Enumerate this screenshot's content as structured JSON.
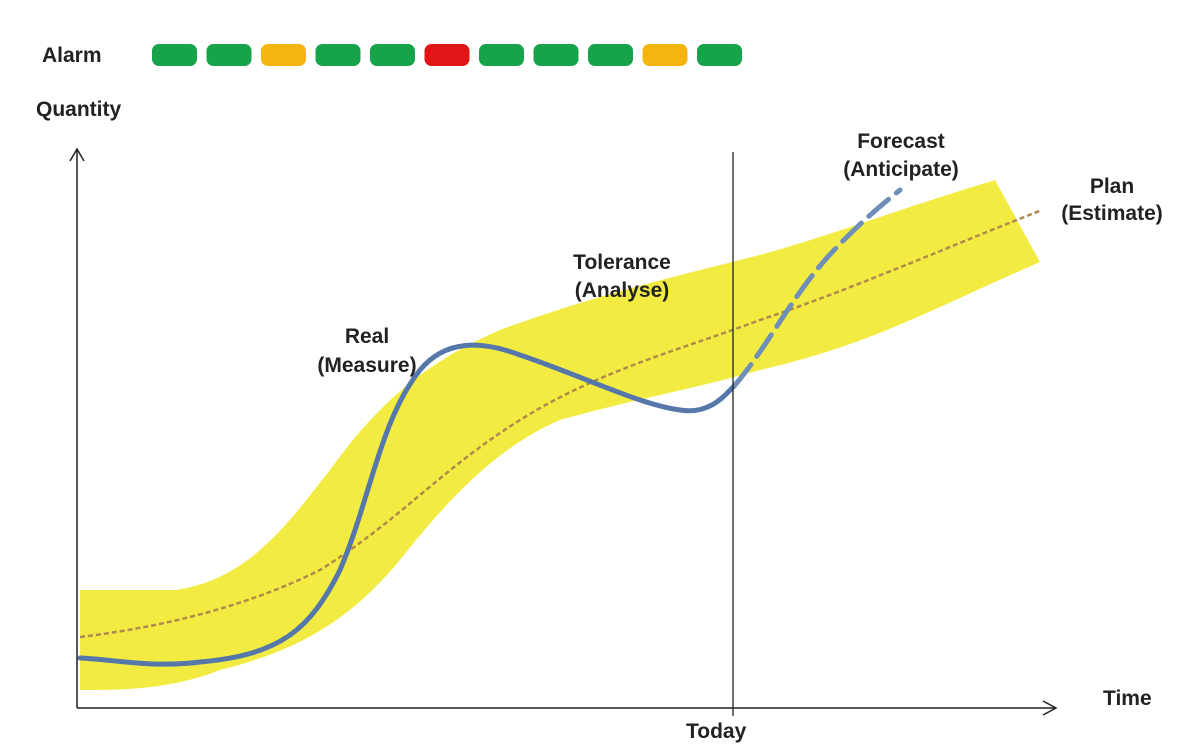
{
  "alarm": {
    "label": "Alarm",
    "lights": [
      "green",
      "green",
      "amber",
      "green",
      "green",
      "red",
      "green",
      "green",
      "green",
      "amber",
      "green"
    ],
    "colors": {
      "green": "#17a34a",
      "amber": "#f5b511",
      "red": "#e01515"
    }
  },
  "axes": {
    "y_label": "Quantity",
    "x_label": "Time",
    "today_label": "Today"
  },
  "labels": {
    "real_line1": "Real",
    "real_line2": "(Measure)",
    "tolerance_line1": "Tolerance",
    "tolerance_line2": "(Analyse)",
    "forecast_line1": "Forecast",
    "forecast_line2": "(Anticipate)",
    "plan_line1": "Plan",
    "plan_line2": "(Estimate)"
  },
  "colors": {
    "tolerance_band": "#f2ec42",
    "real_line": "#5577aa",
    "plan_line": "#b08a4a",
    "forecast_line": "#6f8fb8",
    "axis": "#222222"
  }
}
